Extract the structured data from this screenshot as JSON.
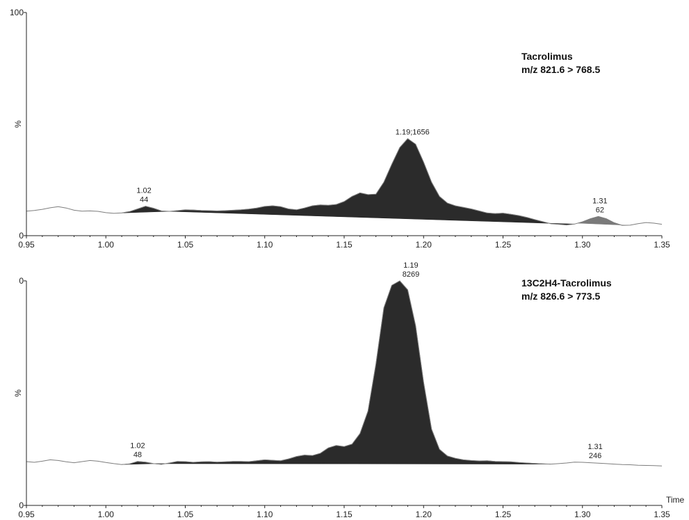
{
  "chart_data": [
    {
      "type": "area",
      "annotation_lines": [
        "Tacrolimus",
        "m/z 821.6 > 768.5"
      ],
      "y_top_label": "100",
      "y_bottom_label": "0",
      "y_mid_label": "%",
      "xlim": [
        0.95,
        1.35
      ],
      "ylim": [
        0,
        100
      ],
      "x_ticks": [
        "0.95",
        "1.00",
        "1.05",
        "1.10",
        "1.15",
        "1.20",
        "1.25",
        "1.30",
        "1.35"
      ],
      "x_axis_title": "",
      "trace_color": "#999999",
      "fill_color": "#2b2b2b",
      "minor_fill_color": "#7a7a7a",
      "trace": {
        "x": [
          0.95,
          0.955,
          0.96,
          0.965,
          0.97,
          0.975,
          0.98,
          0.985,
          0.99,
          0.995,
          1.0,
          1.005,
          1.01,
          1.015,
          1.02,
          1.025,
          1.03,
          1.035,
          1.04,
          1.045,
          1.05,
          1.055,
          1.06,
          1.065,
          1.07,
          1.075,
          1.08,
          1.085,
          1.09,
          1.095,
          1.1,
          1.105,
          1.11,
          1.115,
          1.12,
          1.125,
          1.13,
          1.135,
          1.14,
          1.145,
          1.15,
          1.155,
          1.16,
          1.165,
          1.17,
          1.175,
          1.18,
          1.185,
          1.19,
          1.195,
          1.2,
          1.205,
          1.21,
          1.215,
          1.22,
          1.225,
          1.23,
          1.235,
          1.24,
          1.245,
          1.25,
          1.255,
          1.26,
          1.265,
          1.27,
          1.275,
          1.28,
          1.285,
          1.29,
          1.295,
          1.3,
          1.305,
          1.31,
          1.315,
          1.32,
          1.325,
          1.33,
          1.335,
          1.34,
          1.345,
          1.35
        ],
        "y": [
          11,
          11.3,
          11.8,
          12.5,
          13,
          12.4,
          11.4,
          11,
          11.1,
          10.9,
          10.3,
          10,
          10.2,
          10.8,
          12,
          13.2,
          12.3,
          11.1,
          10.9,
          11.2,
          11.6,
          11.5,
          11.3,
          11.2,
          11.1,
          11.2,
          11.4,
          11.6,
          11.9,
          12.4,
          13.1,
          13.4,
          13,
          12,
          11.6,
          12.4,
          13.4,
          13.8,
          13.6,
          14,
          15.3,
          17.6,
          19.2,
          18.4,
          18.6,
          24,
          32,
          39.5,
          43.5,
          41,
          33,
          24,
          17.6,
          14.6,
          13.4,
          12.7,
          12,
          11.1,
          10.2,
          9.9,
          10.1,
          9.6,
          9,
          8.2,
          7.2,
          6.3,
          5.4,
          5.1,
          4.8,
          5.2,
          6.2,
          7.6,
          8.6,
          7.6,
          5.8,
          4.6,
          4.7,
          5.4,
          5.9,
          5.6,
          5.1
        ]
      },
      "peaks": [
        {
          "label_1": "1.02",
          "label_2": "44",
          "x": 1.024,
          "y": 13.2,
          "x_start": 1.01,
          "x_end": 1.04,
          "minor": true
        },
        {
          "label_1": "1.19;1656",
          "label_2": "",
          "x": 1.193,
          "y": 43.5,
          "x_start": 1.04,
          "x_end": 1.295,
          "minor": false
        },
        {
          "label_1": "1.31",
          "label_2": "62",
          "x": 1.311,
          "y": 8.6,
          "x_start": 1.297,
          "x_end": 1.328,
          "minor": true
        }
      ]
    },
    {
      "type": "area",
      "annotation_lines": [
        "13C2H4-Tacrolimus",
        "m/z 826.6 > 773.5"
      ],
      "y_top_label": "0",
      "y_bottom_label": "0",
      "y_mid_label": "%",
      "xlim": [
        0.95,
        1.35
      ],
      "ylim": [
        0,
        100
      ],
      "x_ticks": [
        "0.95",
        "1.00",
        "1.05",
        "1.10",
        "1.15",
        "1.20",
        "1.25",
        "1.30",
        "1.35"
      ],
      "x_axis_title": "Time",
      "trace_color": "#999999",
      "fill_color": "#2b2b2b",
      "trace": {
        "x": [
          0.95,
          0.955,
          0.96,
          0.965,
          0.97,
          0.975,
          0.98,
          0.985,
          0.99,
          0.995,
          1.0,
          1.005,
          1.01,
          1.015,
          1.02,
          1.025,
          1.03,
          1.035,
          1.04,
          1.045,
          1.05,
          1.055,
          1.06,
          1.065,
          1.07,
          1.075,
          1.08,
          1.085,
          1.09,
          1.095,
          1.1,
          1.105,
          1.11,
          1.115,
          1.12,
          1.125,
          1.13,
          1.135,
          1.14,
          1.145,
          1.15,
          1.155,
          1.16,
          1.165,
          1.17,
          1.175,
          1.18,
          1.185,
          1.19,
          1.195,
          1.2,
          1.205,
          1.21,
          1.215,
          1.22,
          1.225,
          1.23,
          1.235,
          1.24,
          1.245,
          1.25,
          1.255,
          1.26,
          1.265,
          1.27,
          1.275,
          1.28,
          1.285,
          1.29,
          1.295,
          1.3,
          1.305,
          1.31,
          1.315,
          1.32,
          1.325,
          1.33,
          1.335,
          1.34,
          1.345,
          1.35
        ],
        "y": [
          19.5,
          19.2,
          19.7,
          20.3,
          20,
          19.4,
          19,
          19.5,
          20,
          19.7,
          19.1,
          18.6,
          18.2,
          18.5,
          19.6,
          19.3,
          18.6,
          18.3,
          18.9,
          19.6,
          19.5,
          19.2,
          19.4,
          19.5,
          19.3,
          19.4,
          19.6,
          19.6,
          19.5,
          19.9,
          20.3,
          20.1,
          19.9,
          20.7,
          21.8,
          22.4,
          22.2,
          23.2,
          25.6,
          26.7,
          26.2,
          27.3,
          32,
          42,
          63,
          88,
          98,
          100,
          96,
          80,
          55,
          34,
          25,
          22,
          21,
          20.3,
          20,
          19.8,
          19.9,
          19.6,
          19.5,
          19.4,
          19.1,
          18.9,
          18.7,
          18.5,
          18.4,
          18.6,
          18.9,
          19.3,
          19.2,
          19,
          18.8,
          18.6,
          18.4,
          18.2,
          18.1,
          17.9,
          17.8,
          17.7,
          17.6
        ]
      },
      "peaks": [
        {
          "label_1": "1.02",
          "label_2": "48",
          "x": 1.02,
          "y": 19.6,
          "x_start": 1.01,
          "x_end": 1.03,
          "minor": true
        },
        {
          "label_1": "1.19",
          "label_2": "8269",
          "x": 1.192,
          "y": 100,
          "x_start": 1.03,
          "x_end": 1.28,
          "minor": false
        },
        {
          "label_1": "1.31",
          "label_2": "246",
          "x": 1.308,
          "y": 19.2,
          "x_start": 1.3,
          "x_end": 1.31,
          "minor": true,
          "no_fill": true
        }
      ]
    }
  ]
}
